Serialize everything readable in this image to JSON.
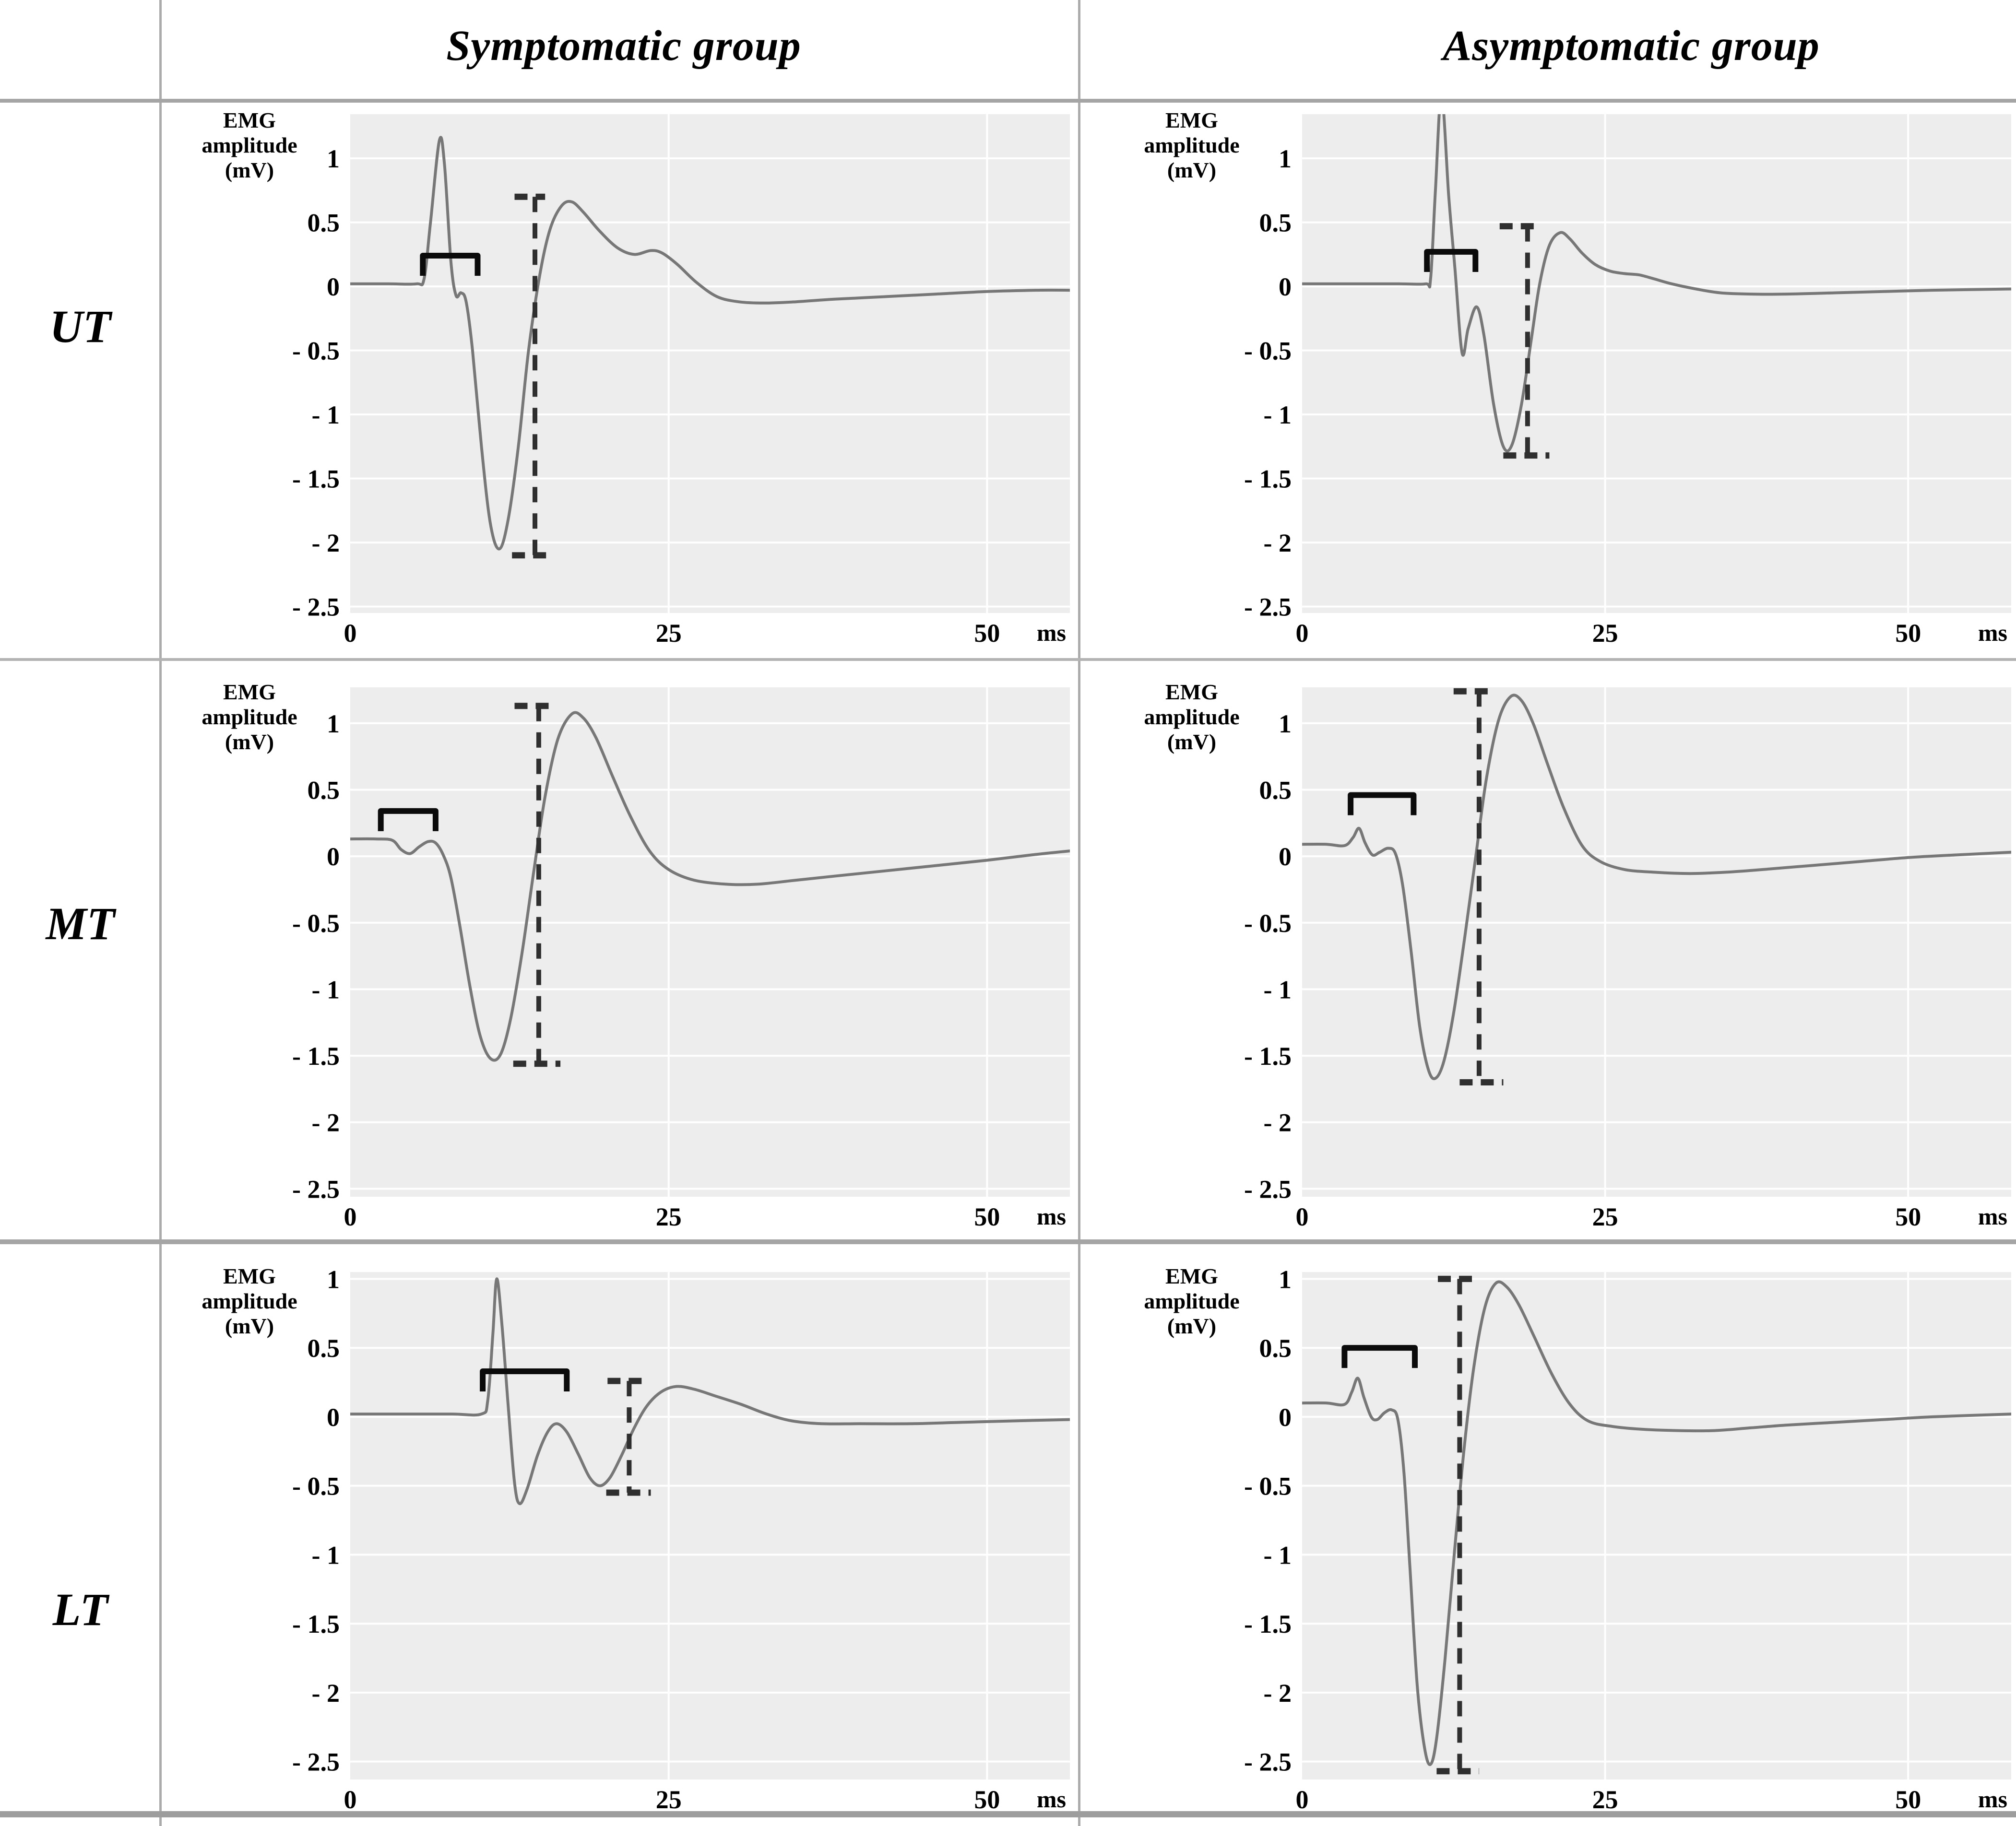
{
  "header": {
    "symptomatic": "Symptomatic group",
    "asymptomatic": "Asymptomatic group"
  },
  "row_labels": [
    "UT",
    "MT",
    "LT"
  ],
  "axis": {
    "y_title_lines": [
      "EMG",
      "amplitude",
      "(mV)"
    ],
    "y_ticks": [
      1,
      0.5,
      0,
      -0.5,
      -1,
      -1.5,
      -2,
      -2.5
    ],
    "x_ticks": [
      0,
      25,
      50
    ],
    "x_unit": "ms",
    "grid": true
  },
  "colors": {
    "plot_bg": "#ededed",
    "grid": "#ffffff",
    "trace": "#777777",
    "bracket": "#0b0b0b",
    "marker": "#2f2f2f",
    "text": "#000000"
  },
  "chart_data": [
    {
      "id": "ut-symptomatic",
      "row": "UT",
      "group": "Symptomatic group",
      "type": "line",
      "xlabel": "ms",
      "ylabel": "EMG amplitude (mV)",
      "xlim": [
        0,
        56.5
      ],
      "ylim": [
        -2.55,
        1.345
      ],
      "x_ticks": [
        0,
        25,
        50
      ],
      "y_ticks": [
        1,
        0.5,
        0,
        -0.5,
        -1,
        -1.5,
        -2,
        -2.5
      ],
      "points": [
        [
          0,
          0.02
        ],
        [
          3,
          0.02
        ],
        [
          5.2,
          0.02
        ],
        [
          5.8,
          0.06
        ],
        [
          6.3,
          0.5
        ],
        [
          7.0,
          1.14
        ],
        [
          7.4,
          0.95
        ],
        [
          7.9,
          0.2
        ],
        [
          8.3,
          -0.07
        ],
        [
          8.7,
          -0.05
        ],
        [
          9.1,
          -0.12
        ],
        [
          9.6,
          -0.5
        ],
        [
          10.3,
          -1.25
        ],
        [
          11.0,
          -1.85
        ],
        [
          11.7,
          -2.05
        ],
        [
          12.4,
          -1.82
        ],
        [
          13.2,
          -1.25
        ],
        [
          14.0,
          -0.5
        ],
        [
          14.9,
          0.1
        ],
        [
          15.7,
          0.45
        ],
        [
          16.6,
          0.63
        ],
        [
          17.4,
          0.66
        ],
        [
          18.3,
          0.58
        ],
        [
          19.6,
          0.43
        ],
        [
          21.0,
          0.3
        ],
        [
          22.3,
          0.25
        ],
        [
          23.6,
          0.28
        ],
        [
          24.5,
          0.26
        ],
        [
          25.7,
          0.17
        ],
        [
          27.2,
          0.03
        ],
        [
          28.8,
          -0.08
        ],
        [
          30.5,
          -0.12
        ],
        [
          32.5,
          -0.13
        ],
        [
          35,
          -0.12
        ],
        [
          38,
          -0.1
        ],
        [
          42,
          -0.08
        ],
        [
          46,
          -0.06
        ],
        [
          50,
          -0.04
        ],
        [
          54,
          -0.03
        ],
        [
          56.5,
          -0.03
        ]
      ],
      "stimulus_bracket": {
        "x1": 5.7,
        "x2": 10.0,
        "y": 0.24
      },
      "amplitude_marker": {
        "x": 14.5,
        "y_top": 0.7,
        "y_bottom": -2.1,
        "top_cap": [
          12.9,
          15.3
        ],
        "bottom_cap": [
          12.7,
          15.9
        ]
      }
    },
    {
      "id": "ut-asymptomatic",
      "row": "UT",
      "group": "Asymptomatic group",
      "type": "line",
      "xlabel": "ms",
      "ylabel": "EMG amplitude (mV)",
      "xlim": [
        0,
        58.5
      ],
      "ylim": [
        -2.55,
        1.345
      ],
      "x_ticks": [
        0,
        25,
        50
      ],
      "y_ticks": [
        1,
        0.5,
        0,
        -0.5,
        -1,
        -1.5,
        -2,
        -2.5
      ],
      "points": [
        [
          0,
          0.02
        ],
        [
          4,
          0.02
        ],
        [
          8,
          0.02
        ],
        [
          10.2,
          0.02
        ],
        [
          10.6,
          0.06
        ],
        [
          11.0,
          0.75
        ],
        [
          11.5,
          1.5
        ],
        [
          12.1,
          0.7
        ],
        [
          12.6,
          0.15
        ],
        [
          13.2,
          -0.52
        ],
        [
          13.7,
          -0.33
        ],
        [
          14.4,
          -0.16
        ],
        [
          15.0,
          -0.38
        ],
        [
          15.8,
          -0.92
        ],
        [
          16.6,
          -1.25
        ],
        [
          17.3,
          -1.24
        ],
        [
          18.1,
          -0.92
        ],
        [
          18.9,
          -0.42
        ],
        [
          19.6,
          0.02
        ],
        [
          20.4,
          0.32
        ],
        [
          21.3,
          0.42
        ],
        [
          22.1,
          0.37
        ],
        [
          23.1,
          0.26
        ],
        [
          24.2,
          0.17
        ],
        [
          25.4,
          0.12
        ],
        [
          26.6,
          0.1
        ],
        [
          27.8,
          0.09
        ],
        [
          29,
          0.06
        ],
        [
          30.5,
          0.02
        ],
        [
          32.5,
          -0.02
        ],
        [
          34.5,
          -0.05
        ],
        [
          37,
          -0.06
        ],
        [
          40,
          -0.06
        ],
        [
          44,
          -0.05
        ],
        [
          48,
          -0.04
        ],
        [
          52,
          -0.03
        ],
        [
          58.5,
          -0.02
        ]
      ],
      "stimulus_bracket": {
        "x1": 10.3,
        "x2": 14.3,
        "y": 0.27
      },
      "amplitude_marker": {
        "x": 18.6,
        "y_top": 0.47,
        "y_bottom": -1.32,
        "top_cap": [
          16.3,
          19.5
        ],
        "bottom_cap": [
          16.6,
          20.4
        ]
      }
    },
    {
      "id": "mt-symptomatic",
      "row": "MT",
      "group": "Symptomatic group",
      "type": "line",
      "xlabel": "ms",
      "ylabel": "EMG amplitude (mV)",
      "xlim": [
        0,
        56.5
      ],
      "ylim": [
        -2.56,
        1.27
      ],
      "x_ticks": [
        0,
        25,
        50
      ],
      "y_ticks": [
        1,
        0.5,
        0,
        -0.5,
        -1,
        -1.5,
        -2,
        -2.5
      ],
      "points": [
        [
          0,
          0.13
        ],
        [
          2,
          0.13
        ],
        [
          3.3,
          0.12
        ],
        [
          4.0,
          0.05
        ],
        [
          4.7,
          0.02
        ],
        [
          5.4,
          0.07
        ],
        [
          6.1,
          0.11
        ],
        [
          6.7,
          0.1
        ],
        [
          7.3,
          0.01
        ],
        [
          7.9,
          -0.16
        ],
        [
          8.6,
          -0.52
        ],
        [
          9.4,
          -0.98
        ],
        [
          10.2,
          -1.35
        ],
        [
          11.0,
          -1.52
        ],
        [
          11.8,
          -1.49
        ],
        [
          12.6,
          -1.22
        ],
        [
          13.5,
          -0.72
        ],
        [
          14.4,
          -0.12
        ],
        [
          15.3,
          0.45
        ],
        [
          16.3,
          0.88
        ],
        [
          17.4,
          1.07
        ],
        [
          18.3,
          1.04
        ],
        [
          19.3,
          0.89
        ],
        [
          20.6,
          0.6
        ],
        [
          22,
          0.3
        ],
        [
          23.5,
          0.04
        ],
        [
          25,
          -0.1
        ],
        [
          27,
          -0.18
        ],
        [
          29.5,
          -0.21
        ],
        [
          32,
          -0.21
        ],
        [
          35,
          -0.18
        ],
        [
          38,
          -0.15
        ],
        [
          42,
          -0.11
        ],
        [
          46,
          -0.07
        ],
        [
          50,
          -0.03
        ],
        [
          53.5,
          0.01
        ],
        [
          56.5,
          0.04
        ]
      ],
      "stimulus_bracket": {
        "x1": 2.4,
        "x2": 6.7,
        "y": 0.34
      },
      "amplitude_marker": {
        "x": 14.8,
        "y_top": 1.13,
        "y_bottom": -1.56,
        "top_cap": [
          12.9,
          16.1
        ],
        "bottom_cap": [
          12.8,
          16.5
        ]
      }
    },
    {
      "id": "mt-asymptomatic",
      "row": "MT",
      "group": "Asymptomatic group",
      "type": "line",
      "xlabel": "ms",
      "ylabel": "EMG amplitude (mV)",
      "xlim": [
        0,
        58.5
      ],
      "ylim": [
        -2.56,
        1.27
      ],
      "x_ticks": [
        0,
        25,
        50
      ],
      "y_ticks": [
        1,
        0.5,
        0,
        -0.5,
        -1,
        -1.5,
        -2,
        -2.5
      ],
      "points": [
        [
          0,
          0.09
        ],
        [
          2,
          0.09
        ],
        [
          3.5,
          0.08
        ],
        [
          4.2,
          0.14
        ],
        [
          4.7,
          0.21
        ],
        [
          5.2,
          0.1
        ],
        [
          5.8,
          0.01
        ],
        [
          6.4,
          0.03
        ],
        [
          7.1,
          0.06
        ],
        [
          7.7,
          0.02
        ],
        [
          8.3,
          -0.22
        ],
        [
          9.0,
          -0.72
        ],
        [
          9.7,
          -1.28
        ],
        [
          10.4,
          -1.6
        ],
        [
          11.0,
          -1.67
        ],
        [
          11.7,
          -1.54
        ],
        [
          12.5,
          -1.18
        ],
        [
          13.4,
          -0.62
        ],
        [
          14.3,
          -0.02
        ],
        [
          15.2,
          0.58
        ],
        [
          16.2,
          1.02
        ],
        [
          17.2,
          1.2
        ],
        [
          18.1,
          1.17
        ],
        [
          19.1,
          0.99
        ],
        [
          20.3,
          0.68
        ],
        [
          21.6,
          0.36
        ],
        [
          23.1,
          0.08
        ],
        [
          24.6,
          -0.04
        ],
        [
          26.6,
          -0.1
        ],
        [
          29,
          -0.12
        ],
        [
          32,
          -0.13
        ],
        [
          35,
          -0.12
        ],
        [
          38,
          -0.1
        ],
        [
          42,
          -0.07
        ],
        [
          46,
          -0.04
        ],
        [
          50,
          -0.01
        ],
        [
          54,
          0.01
        ],
        [
          58.5,
          0.03
        ]
      ],
      "stimulus_bracket": {
        "x1": 4.0,
        "x2": 9.2,
        "y": 0.46
      },
      "amplitude_marker": {
        "x": 14.6,
        "y_top": 1.24,
        "y_bottom": -1.7,
        "top_cap": [
          12.5,
          15.6
        ],
        "bottom_cap": [
          13.0,
          16.6
        ]
      }
    },
    {
      "id": "lt-symptomatic",
      "row": "LT",
      "group": "Symptomatic group",
      "type": "line",
      "xlabel": "ms",
      "ylabel": "EMG amplitude (mV)",
      "xlim": [
        0,
        56.5
      ],
      "ylim": [
        -2.63,
        1.05
      ],
      "x_ticks": [
        0,
        25,
        50
      ],
      "y_ticks": [
        1,
        0.5,
        0,
        -0.5,
        -1,
        -1.5,
        -2,
        -2.5
      ],
      "points": [
        [
          0,
          0.02
        ],
        [
          4,
          0.02
        ],
        [
          8,
          0.02
        ],
        [
          10.3,
          0.02
        ],
        [
          10.8,
          0.12
        ],
        [
          11.2,
          0.6
        ],
        [
          11.5,
          1.0
        ],
        [
          11.9,
          0.68
        ],
        [
          12.4,
          0.08
        ],
        [
          12.9,
          -0.48
        ],
        [
          13.3,
          -0.63
        ],
        [
          13.9,
          -0.52
        ],
        [
          14.7,
          -0.28
        ],
        [
          15.5,
          -0.11
        ],
        [
          16.2,
          -0.05
        ],
        [
          17.0,
          -0.11
        ],
        [
          17.9,
          -0.27
        ],
        [
          18.8,
          -0.44
        ],
        [
          19.6,
          -0.5
        ],
        [
          20.4,
          -0.44
        ],
        [
          21.3,
          -0.28
        ],
        [
          22.3,
          -0.08
        ],
        [
          23.3,
          0.08
        ],
        [
          24.4,
          0.18
        ],
        [
          25.6,
          0.22
        ],
        [
          27,
          0.2
        ],
        [
          28.7,
          0.15
        ],
        [
          30.7,
          0.09
        ],
        [
          32.7,
          0.02
        ],
        [
          34.7,
          -0.03
        ],
        [
          37,
          -0.05
        ],
        [
          40,
          -0.05
        ],
        [
          44,
          -0.05
        ],
        [
          48,
          -0.04
        ],
        [
          52,
          -0.03
        ],
        [
          56.5,
          -0.02
        ]
      ],
      "stimulus_bracket": {
        "x1": 10.4,
        "x2": 17.0,
        "y": 0.33
      },
      "amplitude_marker": {
        "x": 21.9,
        "y_top": 0.26,
        "y_bottom": -0.55,
        "top_cap": [
          20.2,
          23.1
        ],
        "bottom_cap": [
          20.1,
          23.6
        ]
      }
    },
    {
      "id": "lt-asymptomatic",
      "row": "LT",
      "group": "Asymptomatic group",
      "type": "line",
      "xlabel": "ms",
      "ylabel": "EMG amplitude (mV)",
      "xlim": [
        0,
        58.5
      ],
      "ylim": [
        -2.63,
        1.05
      ],
      "x_ticks": [
        0,
        25,
        50
      ],
      "y_ticks": [
        1,
        0.5,
        0,
        -0.5,
        -1,
        -1.5,
        -2,
        -2.5
      ],
      "points": [
        [
          0,
          0.1
        ],
        [
          2,
          0.1
        ],
        [
          3.5,
          0.09
        ],
        [
          4.1,
          0.18
        ],
        [
          4.6,
          0.28
        ],
        [
          5.1,
          0.14
        ],
        [
          5.7,
          0.0
        ],
        [
          6.2,
          -0.02
        ],
        [
          6.8,
          0.03
        ],
        [
          7.4,
          0.05
        ],
        [
          7.9,
          -0.02
        ],
        [
          8.4,
          -0.4
        ],
        [
          8.9,
          -1.1
        ],
        [
          9.5,
          -1.95
        ],
        [
          10.1,
          -2.4
        ],
        [
          10.6,
          -2.52
        ],
        [
          11.1,
          -2.33
        ],
        [
          11.8,
          -1.75
        ],
        [
          12.6,
          -0.95
        ],
        [
          13.4,
          -0.2
        ],
        [
          14.2,
          0.38
        ],
        [
          15.1,
          0.8
        ],
        [
          16.0,
          0.97
        ],
        [
          16.9,
          0.94
        ],
        [
          17.9,
          0.81
        ],
        [
          19.1,
          0.59
        ],
        [
          20.6,
          0.31
        ],
        [
          22.1,
          0.09
        ],
        [
          23.6,
          -0.03
        ],
        [
          25.6,
          -0.07
        ],
        [
          28,
          -0.09
        ],
        [
          31,
          -0.1
        ],
        [
          34,
          -0.1
        ],
        [
          37,
          -0.08
        ],
        [
          40,
          -0.06
        ],
        [
          44,
          -0.04
        ],
        [
          48,
          -0.02
        ],
        [
          52,
          0.0
        ],
        [
          58.5,
          0.02
        ]
      ],
      "stimulus_bracket": {
        "x1": 3.5,
        "x2": 9.3,
        "y": 0.5
      },
      "amplitude_marker": {
        "x": 13.0,
        "y_top": 1.0,
        "y_bottom": -2.57,
        "top_cap": [
          11.2,
          14.3
        ],
        "bottom_cap": [
          11.1,
          14.6
        ]
      }
    }
  ]
}
